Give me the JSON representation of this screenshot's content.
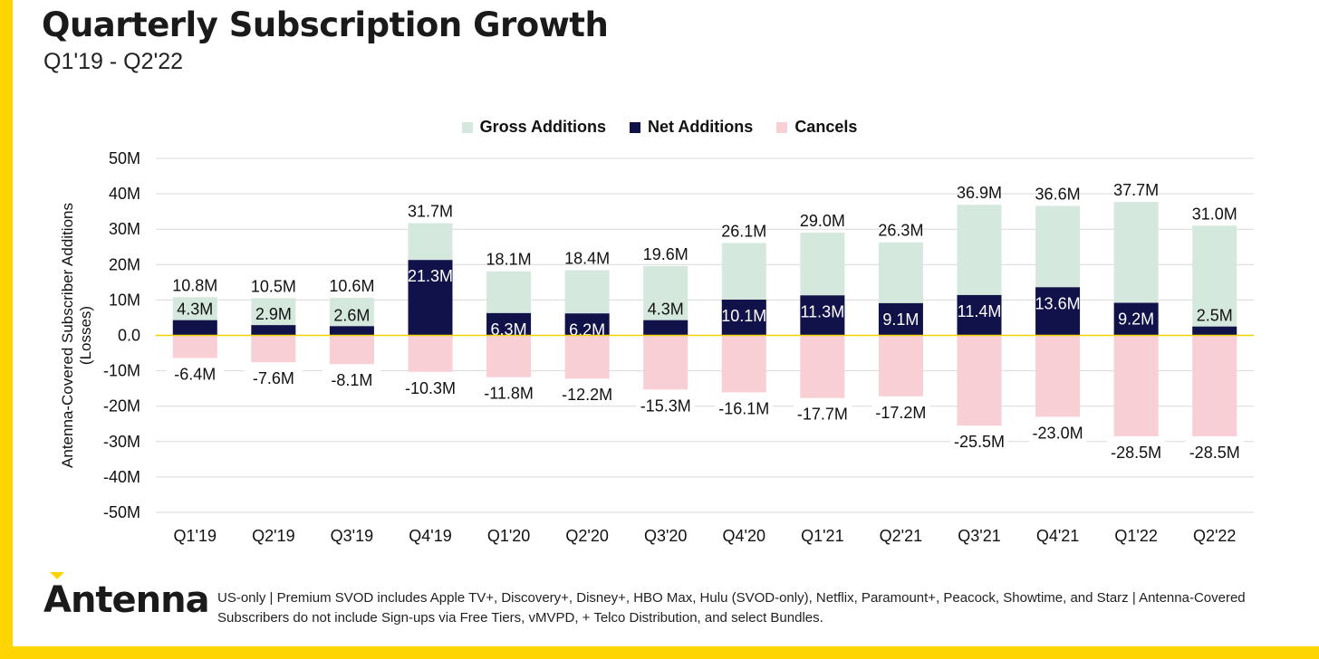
{
  "header": {
    "title": "Quarterly Subscription Growth",
    "subtitle": "Q1'19 - Q2'22"
  },
  "legend": [
    {
      "label": "Gross Additions",
      "color": "#D5E8DD"
    },
    {
      "label": "Net Additions",
      "color": "#12124A"
    },
    {
      "label": "Cancels",
      "color": "#F7CFD5"
    }
  ],
  "chart_data": {
    "type": "bar",
    "title": "Quarterly Subscription Growth",
    "subtitle": "Q1'19 - Q2'22",
    "ylabel": "Antenna-Covered Subscriber Additions (Losses)",
    "ylim": [
      -50,
      50
    ],
    "yticks": [
      50,
      40,
      30,
      20,
      10,
      0,
      -10,
      -20,
      -30,
      -40,
      -50
    ],
    "ytick_labels": [
      "50M",
      "40M",
      "30M",
      "20M",
      "10M",
      "0.0",
      "-10M",
      "-20M",
      "-30M",
      "-40M",
      "-50M"
    ],
    "grid": true,
    "legend_position": "top",
    "categories": [
      "Q1'19",
      "Q2'19",
      "Q3'19",
      "Q4'19",
      "Q1'20",
      "Q2'20",
      "Q3'20",
      "Q4'20",
      "Q1'21",
      "Q2'21",
      "Q3'21",
      "Q4'21",
      "Q1'22",
      "Q2'22"
    ],
    "series": [
      {
        "name": "Gross Additions",
        "color": "#D5E8DD",
        "values": [
          10.8,
          10.5,
          10.6,
          31.7,
          18.1,
          18.4,
          19.6,
          26.1,
          29.0,
          26.3,
          36.9,
          36.6,
          37.7,
          31.0
        ],
        "labels": [
          "10.8M",
          "10.5M",
          "10.6M",
          "31.7M",
          "18.1M",
          "18.4M",
          "19.6M",
          "26.1M",
          "29.0M",
          "26.3M",
          "36.9M",
          "36.6M",
          "37.7M",
          "31.0M"
        ]
      },
      {
        "name": "Net Additions",
        "color": "#12124A",
        "values": [
          4.3,
          2.9,
          2.6,
          21.3,
          6.3,
          6.2,
          4.3,
          10.1,
          11.3,
          9.1,
          11.4,
          13.6,
          9.2,
          2.5
        ],
        "labels": [
          "4.3M",
          "2.9M",
          "2.6M",
          "21.3M",
          "6.3M",
          "6.2M",
          "4.3M",
          "10.1M",
          "11.3M",
          "9.1M",
          "11.4M",
          "13.6M",
          "9.2M",
          "2.5M"
        ]
      },
      {
        "name": "Cancels",
        "color": "#F7CFD5",
        "values": [
          -6.4,
          -7.6,
          -8.1,
          -10.3,
          -11.8,
          -12.2,
          -15.3,
          -16.1,
          -17.7,
          -17.2,
          -25.5,
          -23.0,
          -28.5,
          -28.5
        ],
        "labels": [
          "-6.4M",
          "-7.6M",
          "-8.1M",
          "-10.3M",
          "-11.8M",
          "-12.2M",
          "-15.3M",
          "-16.1M",
          "-17.7M",
          "-17.2M",
          "-25.5M",
          "-23.0M",
          "-28.5M",
          "-28.5M"
        ]
      }
    ],
    "zero_line_color": "#F2D200"
  },
  "footer": {
    "logo_text": "Antenna",
    "note": "US-only | Premium SVOD includes Apple TV+, Discovery+, Disney+, HBO Max, Hulu (SVOD-only), Netflix, Paramount+, Peacock, Showtime, and Starz | Antenna-Covered Subscribers do not include Sign-ups via Free Tiers, vMVPD, + Telco Distribution, and select Bundles."
  }
}
